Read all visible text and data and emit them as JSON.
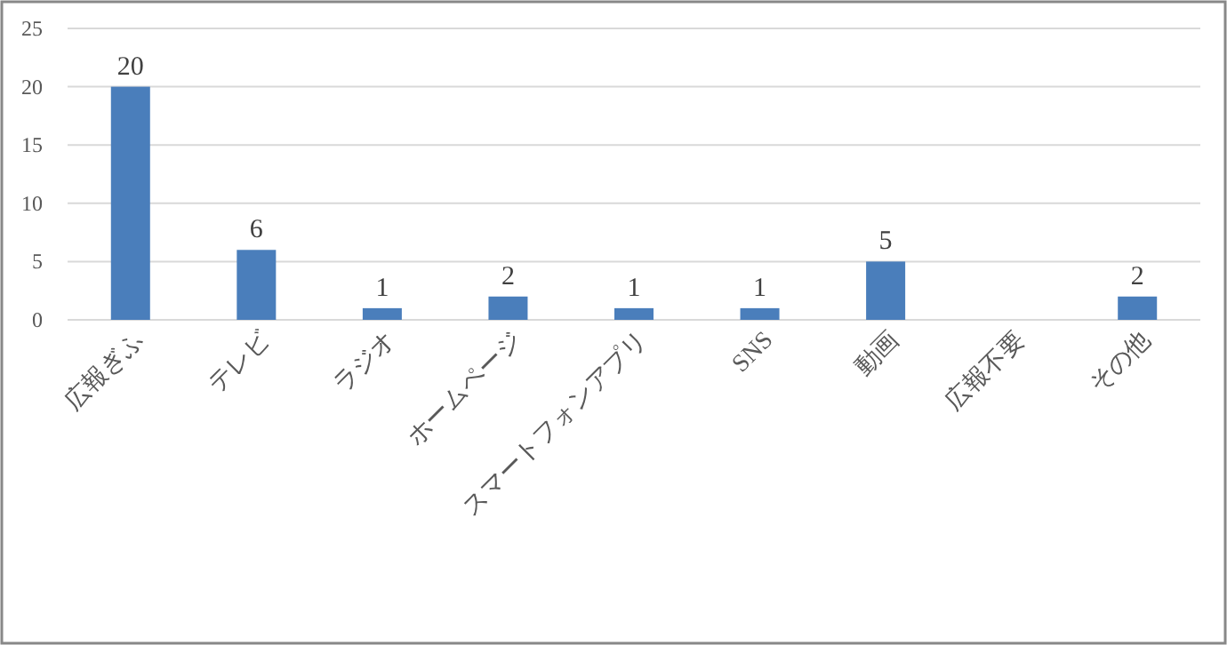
{
  "chart_data": {
    "type": "bar",
    "categories": [
      "広報ぎふ",
      "テレビ",
      "ラジオ",
      "ホームページ",
      "スマートフォンアプリ",
      "SNS",
      "動画",
      "広報不要",
      "その他"
    ],
    "values": [
      20,
      6,
      1,
      2,
      1,
      1,
      5,
      0,
      2
    ],
    "color": "#4a7ebb",
    "value_labels": [
      "20",
      "6",
      "1",
      "2",
      "1",
      "1",
      "5",
      null,
      "2"
    ],
    "ylim": [
      0,
      25
    ],
    "yticks": [
      0,
      5,
      10,
      15,
      20,
      25
    ],
    "grid": "y"
  }
}
